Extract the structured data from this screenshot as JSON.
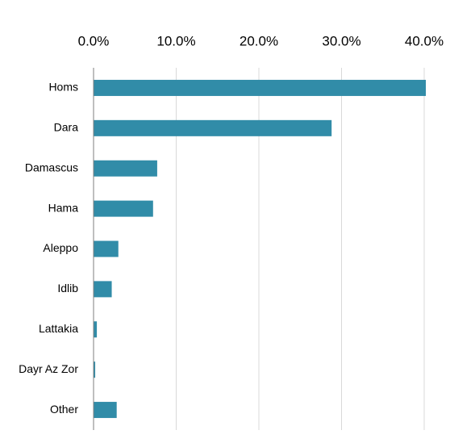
{
  "chart_data": {
    "type": "barh",
    "categories": [
      "Homs",
      "Dara",
      "Damascus",
      "Hama",
      "Aleppo",
      "Idlib",
      "Lattakia",
      "Dayr Az Zor",
      "Other"
    ],
    "values": [
      40.2,
      28.8,
      7.7,
      7.2,
      3.0,
      2.2,
      0.4,
      0.2,
      2.8
    ],
    "color": "#318ca8",
    "xlim": [
      0,
      40
    ],
    "xticks": [
      {
        "value": 0,
        "label": "0.0%"
      },
      {
        "value": 10,
        "label": "10.0%"
      },
      {
        "value": 20,
        "label": "20.0%"
      },
      {
        "value": 30,
        "label": "30.0%"
      },
      {
        "value": 40,
        "label": "40.0%"
      }
    ],
    "grid": true
  }
}
